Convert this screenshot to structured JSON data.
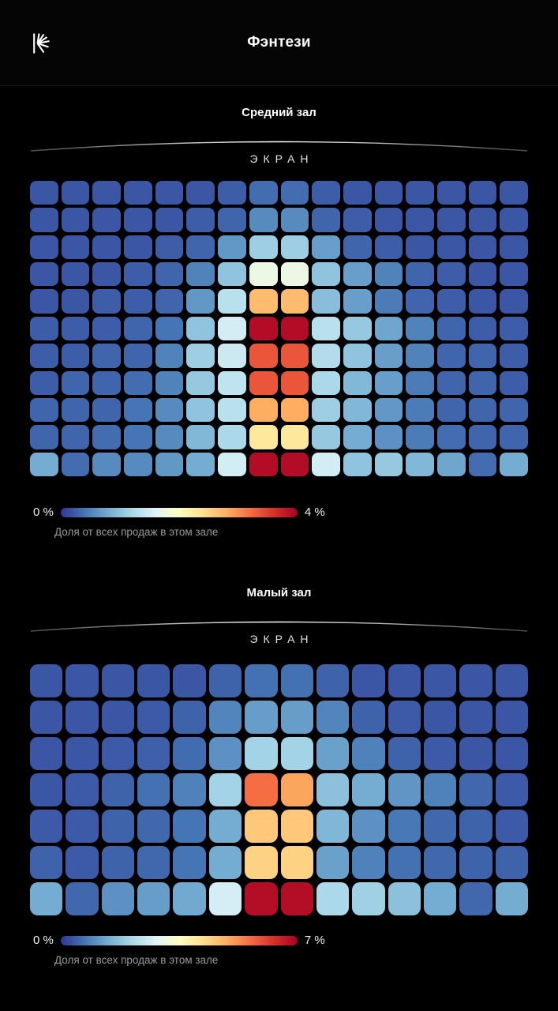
{
  "header": {
    "title": "Фэнтези",
    "logo": "kinopoisk-logo"
  },
  "colormap": [
    "#313695",
    "#4575b4",
    "#74add1",
    "#abd9e9",
    "#e0f3f8",
    "#ffffbf",
    "#fee090",
    "#fdae61",
    "#f46d43",
    "#d73027",
    "#a50026"
  ],
  "chart_data": [
    {
      "type": "heatmap",
      "title": "Средний зал",
      "screen_label": "ЭКРАН",
      "rows": 11,
      "cols": 16,
      "unit": "%",
      "min": 0,
      "max": 4,
      "legend": {
        "min_label": "0 %",
        "max_label": "4 %",
        "caption": "Доля от всех продаж в этом зале"
      },
      "values": [
        [
          0.2,
          0.2,
          0.2,
          0.2,
          0.2,
          0.2,
          0.25,
          0.35,
          0.35,
          0.25,
          0.2,
          0.2,
          0.2,
          0.2,
          0.2,
          0.2
        ],
        [
          0.2,
          0.2,
          0.2,
          0.2,
          0.2,
          0.25,
          0.3,
          0.55,
          0.55,
          0.3,
          0.25,
          0.2,
          0.2,
          0.2,
          0.2,
          0.2
        ],
        [
          0.2,
          0.2,
          0.2,
          0.2,
          0.25,
          0.3,
          0.65,
          1.1,
          1.1,
          0.7,
          0.3,
          0.25,
          0.2,
          0.2,
          0.2,
          0.2
        ],
        [
          0.2,
          0.2,
          0.2,
          0.25,
          0.3,
          0.5,
          1.0,
          1.75,
          1.75,
          1.0,
          0.7,
          0.5,
          0.3,
          0.25,
          0.2,
          0.2
        ],
        [
          0.2,
          0.2,
          0.25,
          0.25,
          0.3,
          0.65,
          1.3,
          2.7,
          2.7,
          0.95,
          0.7,
          0.45,
          0.3,
          0.25,
          0.2,
          0.2
        ],
        [
          0.25,
          0.25,
          0.25,
          0.3,
          0.4,
          1.0,
          1.5,
          3.9,
          3.9,
          1.3,
          1.05,
          0.75,
          0.5,
          0.3,
          0.25,
          0.25
        ],
        [
          0.25,
          0.25,
          0.3,
          0.3,
          0.5,
          1.1,
          1.45,
          3.35,
          3.35,
          1.25,
          1.0,
          0.7,
          0.5,
          0.3,
          0.3,
          0.25
        ],
        [
          0.25,
          0.3,
          0.3,
          0.35,
          0.5,
          1.05,
          1.35,
          3.35,
          3.35,
          1.2,
          0.9,
          0.7,
          0.45,
          0.3,
          0.3,
          0.25
        ],
        [
          0.3,
          0.3,
          0.3,
          0.4,
          0.55,
          1.0,
          1.3,
          2.8,
          2.8,
          1.1,
          0.9,
          0.65,
          0.45,
          0.3,
          0.3,
          0.3
        ],
        [
          0.3,
          0.3,
          0.35,
          0.4,
          0.55,
          0.9,
          1.2,
          2.3,
          2.3,
          1.05,
          0.8,
          0.6,
          0.45,
          0.35,
          0.3,
          0.3
        ],
        [
          0.8,
          0.35,
          0.55,
          0.55,
          0.65,
          0.8,
          1.5,
          3.9,
          3.9,
          1.5,
          1.0,
          1.05,
          0.9,
          0.75,
          0.35,
          0.8
        ]
      ]
    },
    {
      "type": "heatmap",
      "title": "Малый зал",
      "screen_label": "ЭКРАН",
      "rows": 7,
      "cols": 14,
      "unit": "%",
      "min": 0,
      "max": 7,
      "legend": {
        "min_label": "0 %",
        "max_label": "7 %",
        "caption": "Доля от всех продаж в этом зале"
      },
      "values": [
        [
          0.35,
          0.35,
          0.35,
          0.35,
          0.35,
          0.5,
          0.65,
          0.65,
          0.5,
          0.35,
          0.35,
          0.35,
          0.35,
          0.35
        ],
        [
          0.35,
          0.35,
          0.35,
          0.4,
          0.5,
          0.9,
          1.2,
          1.2,
          0.9,
          0.5,
          0.4,
          0.35,
          0.35,
          0.35
        ],
        [
          0.35,
          0.35,
          0.4,
          0.45,
          0.6,
          1.05,
          2.0,
          2.0,
          1.25,
          0.85,
          0.5,
          0.4,
          0.35,
          0.35
        ],
        [
          0.35,
          0.4,
          0.5,
          0.65,
          0.85,
          2.0,
          5.6,
          5.0,
          1.7,
          1.4,
          1.1,
          0.85,
          0.55,
          0.4
        ],
        [
          0.4,
          0.4,
          0.5,
          0.55,
          0.7,
          1.4,
          4.55,
          4.55,
          1.55,
          1.05,
          0.75,
          0.55,
          0.5,
          0.4
        ],
        [
          0.5,
          0.4,
          0.5,
          0.55,
          0.7,
          1.4,
          4.4,
          4.4,
          1.25,
          0.85,
          0.65,
          0.55,
          0.5,
          0.5
        ],
        [
          1.4,
          0.55,
          1.05,
          1.2,
          1.35,
          2.65,
          6.8,
          6.8,
          2.1,
          1.95,
          1.7,
          1.4,
          0.55,
          1.4
        ]
      ]
    }
  ]
}
